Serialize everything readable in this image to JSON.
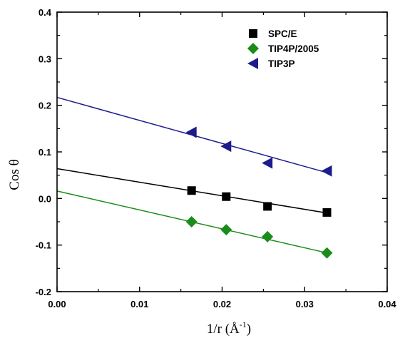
{
  "chart_data": {
    "type": "scatter",
    "title": "",
    "xlabel": "1/r (Å",
    "xlabel_sup": "-1",
    "xlabel_close": ")",
    "ylabel": "Cos θ",
    "xlim": [
      0.0,
      0.04
    ],
    "ylim": [
      -0.2,
      0.4
    ],
    "xticks": [
      "0.00",
      "0.01",
      "0.02",
      "0.03",
      "0.04"
    ],
    "yticks": [
      "-0.2",
      "-0.1",
      "0.0",
      "0.1",
      "0.2",
      "0.3",
      "0.4"
    ],
    "legend_position": "top-right",
    "series": [
      {
        "name": "SPC/E",
        "marker": "square",
        "color": "#000000",
        "points": [
          [
            0.0163,
            0.017
          ],
          [
            0.0205,
            0.004
          ],
          [
            0.0255,
            -0.017
          ],
          [
            0.0327,
            -0.03
          ]
        ],
        "fit_line": [
          [
            0.0,
            0.064
          ],
          [
            0.033,
            -0.032
          ]
        ]
      },
      {
        "name": "TIP4P/2005",
        "marker": "diamond",
        "color": "#1a8c1a",
        "points": [
          [
            0.0163,
            -0.05
          ],
          [
            0.0205,
            -0.067
          ],
          [
            0.0255,
            -0.082
          ],
          [
            0.0327,
            -0.117
          ]
        ],
        "fit_line": [
          [
            0.0,
            0.016
          ],
          [
            0.033,
            -0.118
          ]
        ]
      },
      {
        "name": "TIP3P",
        "marker": "triangle-left",
        "color": "#1c1c8c",
        "points": [
          [
            0.0163,
            0.142
          ],
          [
            0.0205,
            0.112
          ],
          [
            0.0255,
            0.076
          ],
          [
            0.0327,
            0.059
          ]
        ],
        "fit_line": [
          [
            0.0,
            0.217
          ],
          [
            0.033,
            0.054
          ]
        ]
      }
    ]
  }
}
